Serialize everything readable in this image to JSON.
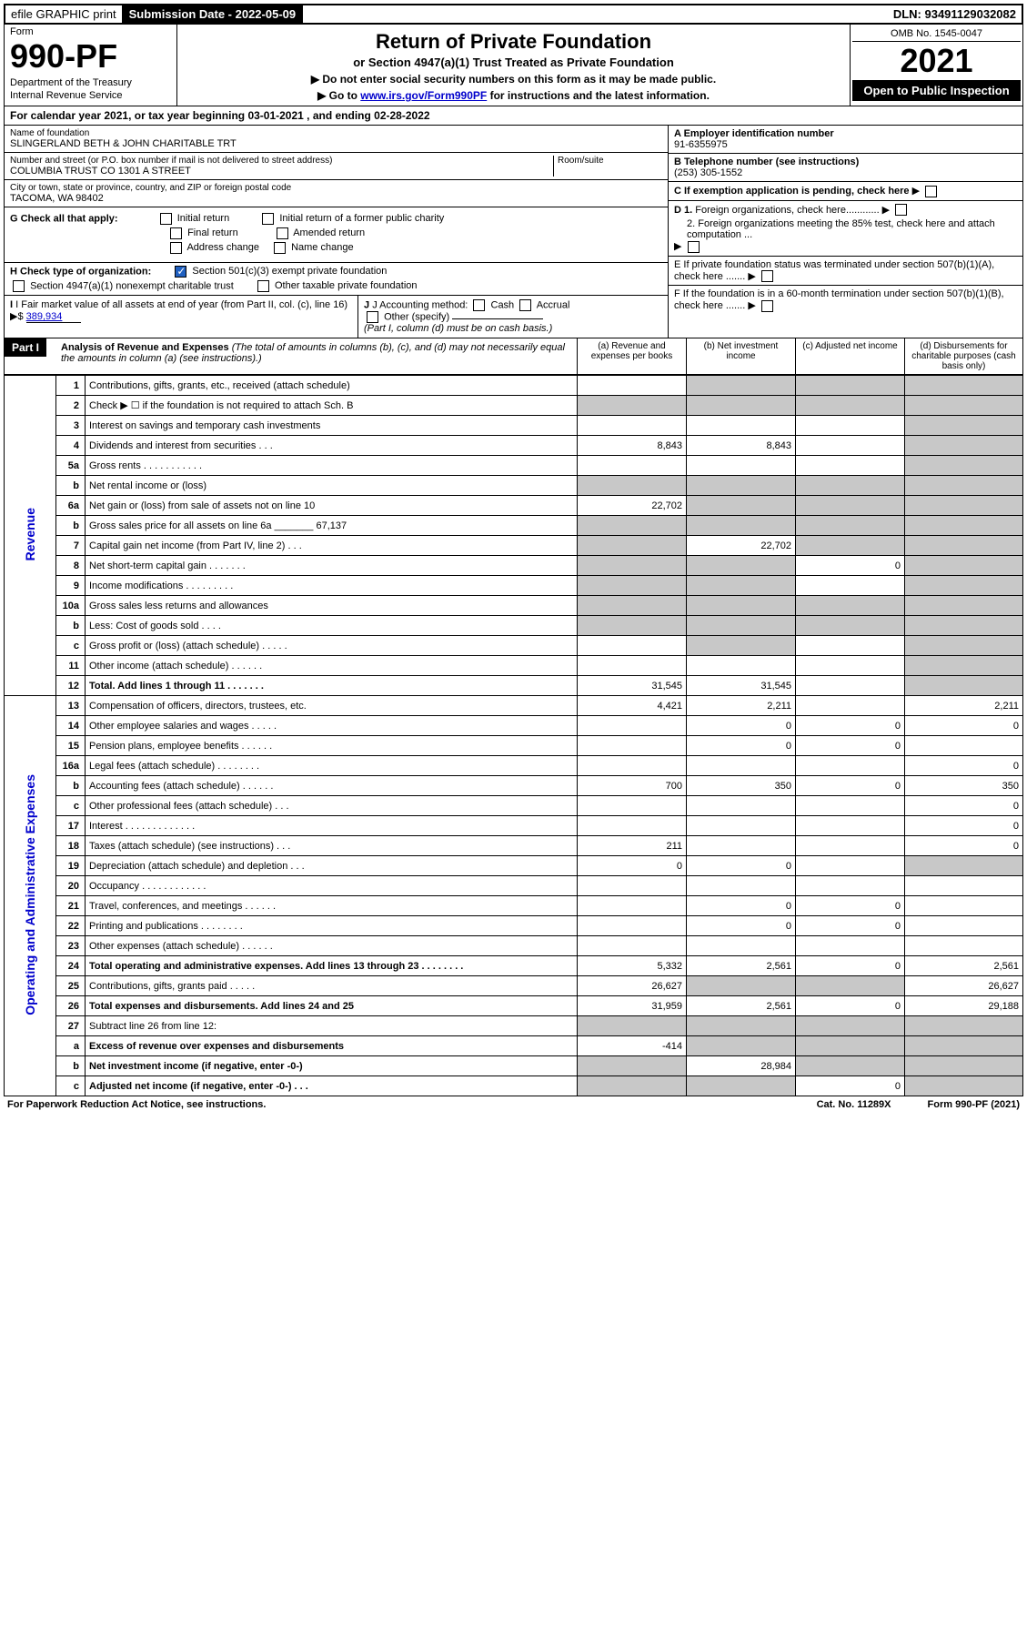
{
  "top": {
    "efile": "efile GRAPHIC print",
    "submission": "Submission Date - 2022-05-09",
    "dln": "DLN: 93491129032082"
  },
  "header": {
    "form_label": "Form",
    "form_number": "990-PF",
    "dept1": "Department of the Treasury",
    "dept2": "Internal Revenue Service",
    "title": "Return of Private Foundation",
    "subtitle": "or Section 4947(a)(1) Trust Treated as Private Foundation",
    "inst1": "▶ Do not enter social security numbers on this form as it may be made public.",
    "inst2": "▶ Go to ",
    "inst2_link": "www.irs.gov/Form990PF",
    "inst2_after": " for instructions and the latest information.",
    "omb": "OMB No. 1545-0047",
    "year": "2021",
    "open": "Open to Public Inspection"
  },
  "calendar": "For calendar year 2021, or tax year beginning 03-01-2021                              , and ending 02-28-2022",
  "foundation": {
    "name_label": "Name of foundation",
    "name": "SLINGERLAND BETH & JOHN CHARITABLE TRT",
    "addr_label": "Number and street (or P.O. box number if mail is not delivered to street address)",
    "addr": "COLUMBIA TRUST CO 1301 A STREET",
    "room_label": "Room/suite",
    "city_label": "City or town, state or province, country, and ZIP or foreign postal code",
    "city": "TACOMA, WA  98402"
  },
  "right_info": {
    "a_label": "A Employer identification number",
    "a_val": "91-6355975",
    "b_label": "B Telephone number (see instructions)",
    "b_val": "(253) 305-1552",
    "c_label": "C If exemption application is pending, check here",
    "d1": "D 1. Foreign organizations, check here............",
    "d2": "2. Foreign organizations meeting the 85% test, check here and attach computation ...",
    "e": "E  If private foundation status was terminated under section 507(b)(1)(A), check here .......",
    "f": "F  If the foundation is in a 60-month termination under section 507(b)(1)(B), check here ......."
  },
  "g": {
    "label": "G Check all that apply:",
    "opts": [
      "Initial return",
      "Final return",
      "Address change",
      "Initial return of a former public charity",
      "Amended return",
      "Name change"
    ]
  },
  "h": {
    "label": "H Check type of organization:",
    "opt1": "Section 501(c)(3) exempt private foundation",
    "opt2": "Section 4947(a)(1) nonexempt charitable trust",
    "opt3": "Other taxable private foundation"
  },
  "i": {
    "label": "I Fair market value of all assets at end of year (from Part II, col. (c), line 16)",
    "val": "389,934"
  },
  "j": {
    "label": "J Accounting method:",
    "cash": "Cash",
    "accrual": "Accrual",
    "other": "Other (specify)",
    "note": "(Part I, column (d) must be on cash basis.)"
  },
  "part1": {
    "label": "Part I",
    "title": "Analysis of Revenue and Expenses",
    "title_note": "(The total of amounts in columns (b), (c), and (d) may not necessarily equal the amounts in column (a) (see instructions).)",
    "col_a": "(a)   Revenue and expenses per books",
    "col_b": "(b)   Net investment income",
    "col_c": "(c)   Adjusted net income",
    "col_d": "(d)  Disbursements for charitable purposes (cash basis only)"
  },
  "side_labels": {
    "revenue": "Revenue",
    "expenses": "Operating and Administrative Expenses"
  },
  "rows": [
    {
      "n": "1",
      "d": "Contributions, gifts, grants, etc., received (attach schedule)",
      "a": "",
      "b": "shade",
      "c": "shade",
      "dd": "shade"
    },
    {
      "n": "2",
      "d": "Check ▶ ☐ if the foundation is not required to attach Sch. B",
      "a": "shade",
      "b": "shade",
      "c": "shade",
      "dd": "shade"
    },
    {
      "n": "3",
      "d": "Interest on savings and temporary cash investments",
      "a": "",
      "b": "",
      "c": "",
      "dd": "shade"
    },
    {
      "n": "4",
      "d": "Dividends and interest from securities   .   .   .",
      "a": "8,843",
      "b": "8,843",
      "c": "",
      "dd": "shade"
    },
    {
      "n": "5a",
      "d": "Gross rents   .   .   .   .   .   .   .   .   .   .   .",
      "a": "",
      "b": "",
      "c": "",
      "dd": "shade"
    },
    {
      "n": "b",
      "d": "Net rental income or (loss)  ",
      "a": "shade",
      "b": "shade",
      "c": "shade",
      "dd": "shade"
    },
    {
      "n": "6a",
      "d": "Net gain or (loss) from sale of assets not on line 10",
      "a": "22,702",
      "b": "shade",
      "c": "shade",
      "dd": "shade"
    },
    {
      "n": "b",
      "d": "Gross sales price for all assets on line 6a _______ 67,137",
      "a": "shade",
      "b": "shade",
      "c": "shade",
      "dd": "shade"
    },
    {
      "n": "7",
      "d": "Capital gain net income (from Part IV, line 2)   .   .   .",
      "a": "shade",
      "b": "22,702",
      "c": "shade",
      "dd": "shade"
    },
    {
      "n": "8",
      "d": "Net short-term capital gain   .   .   .   .   .   .   .",
      "a": "shade",
      "b": "shade",
      "c": "0",
      "dd": "shade"
    },
    {
      "n": "9",
      "d": "Income modifications   .   .   .   .   .   .   .   .   .",
      "a": "shade",
      "b": "shade",
      "c": "",
      "dd": "shade"
    },
    {
      "n": "10a",
      "d": "Gross sales less returns and allowances",
      "a": "shade",
      "b": "shade",
      "c": "shade",
      "dd": "shade"
    },
    {
      "n": "b",
      "d": "Less: Cost of goods sold   .   .   .   .",
      "a": "shade",
      "b": "shade",
      "c": "shade",
      "dd": "shade"
    },
    {
      "n": "c",
      "d": "Gross profit or (loss) (attach schedule)   .   .   .   .   .",
      "a": "",
      "b": "shade",
      "c": "",
      "dd": "shade"
    },
    {
      "n": "11",
      "d": "Other income (attach schedule)   .   .   .   .   .   .",
      "a": "",
      "b": "",
      "c": "",
      "dd": "shade"
    },
    {
      "n": "12",
      "d": "Total. Add lines 1 through 11   .   .   .   .   .   .   .",
      "bold": true,
      "a": "31,545",
      "b": "31,545",
      "c": "",
      "dd": "shade"
    },
    {
      "n": "13",
      "d": "Compensation of officers, directors, trustees, etc.",
      "a": "4,421",
      "b": "2,211",
      "c": "",
      "dd": "2,211"
    },
    {
      "n": "14",
      "d": "Other employee salaries and wages   .   .   .   .   .",
      "a": "",
      "b": "0",
      "c": "0",
      "dd": "0"
    },
    {
      "n": "15",
      "d": "Pension plans, employee benefits   .   .   .   .   .   .",
      "a": "",
      "b": "0",
      "c": "0",
      "dd": ""
    },
    {
      "n": "16a",
      "d": "Legal fees (attach schedule)   .   .   .   .   .   .   .   .",
      "a": "",
      "b": "",
      "c": "",
      "dd": "0"
    },
    {
      "n": "b",
      "d": "Accounting fees (attach schedule)   .   .   .   .   .   .",
      "a": "700",
      "b": "350",
      "c": "0",
      "dd": "350"
    },
    {
      "n": "c",
      "d": "Other professional fees (attach schedule)   .   .   .",
      "a": "",
      "b": "",
      "c": "",
      "dd": "0"
    },
    {
      "n": "17",
      "d": "Interest   .   .   .   .   .   .   .   .   .   .   .   .   .",
      "a": "",
      "b": "",
      "c": "",
      "dd": "0"
    },
    {
      "n": "18",
      "d": "Taxes (attach schedule) (see instructions)   .   .   .",
      "a": "211",
      "b": "",
      "c": "",
      "dd": "0"
    },
    {
      "n": "19",
      "d": "Depreciation (attach schedule) and depletion   .   .   .",
      "a": "0",
      "b": "0",
      "c": "",
      "dd": "shade"
    },
    {
      "n": "20",
      "d": "Occupancy   .   .   .   .   .   .   .   .   .   .   .   .",
      "a": "",
      "b": "",
      "c": "",
      "dd": ""
    },
    {
      "n": "21",
      "d": "Travel, conferences, and meetings   .   .   .   .   .   .",
      "a": "",
      "b": "0",
      "c": "0",
      "dd": ""
    },
    {
      "n": "22",
      "d": "Printing and publications   .   .   .   .   .   .   .   .",
      "a": "",
      "b": "0",
      "c": "0",
      "dd": ""
    },
    {
      "n": "23",
      "d": "Other expenses (attach schedule)   .   .   .   .   .   .",
      "a": "",
      "b": "",
      "c": "",
      "dd": ""
    },
    {
      "n": "24",
      "d": "Total operating and administrative expenses. Add lines 13 through 23   .   .   .   .   .   .   .   .",
      "bold": true,
      "a": "5,332",
      "b": "2,561",
      "c": "0",
      "dd": "2,561"
    },
    {
      "n": "25",
      "d": "Contributions, gifts, grants paid   .   .   .   .   .",
      "a": "26,627",
      "b": "shade",
      "c": "shade",
      "dd": "26,627"
    },
    {
      "n": "26",
      "d": "Total expenses and disbursements. Add lines 24 and 25",
      "bold": true,
      "a": "31,959",
      "b": "2,561",
      "c": "0",
      "dd": "29,188"
    },
    {
      "n": "27",
      "d": "Subtract line 26 from line 12:",
      "a": "shade",
      "b": "shade",
      "c": "shade",
      "dd": "shade"
    },
    {
      "n": "a",
      "d": "Excess of revenue over expenses and disbursements",
      "bold": true,
      "a": "-414",
      "b": "shade",
      "c": "shade",
      "dd": "shade"
    },
    {
      "n": "b",
      "d": "Net investment income (if negative, enter -0-)",
      "bold": true,
      "a": "shade",
      "b": "28,984",
      "c": "shade",
      "dd": "shade"
    },
    {
      "n": "c",
      "d": "Adjusted net income (if negative, enter -0-)   .   .   .",
      "bold": true,
      "a": "shade",
      "b": "shade",
      "c": "0",
      "dd": "shade"
    }
  ],
  "footer": {
    "left": "For Paperwork Reduction Act Notice, see instructions.",
    "mid": "Cat. No. 11289X",
    "right": "Form 990-PF (2021)"
  }
}
